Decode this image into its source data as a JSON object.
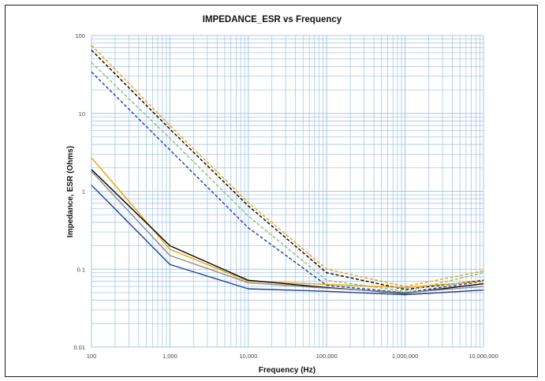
{
  "chart_data": {
    "type": "line",
    "title": "IMPEDANCE_ESR vs Frequency",
    "xlabel": "Frequency (Hz)",
    "ylabel": "Impedance, ESR (Ohms)",
    "x_scale": "log",
    "y_scale": "log",
    "xlim": [
      100,
      10000000
    ],
    "ylim": [
      0.01,
      100
    ],
    "x_ticks": [
      {
        "value": 100,
        "label": "100"
      },
      {
        "value": 1000,
        "label": "1,000"
      },
      {
        "value": 10000,
        "label": "10,000"
      },
      {
        "value": 100000,
        "label": "100,000"
      },
      {
        "value": 1000000,
        "label": "1,000,000"
      },
      {
        "value": 10000000,
        "label": "10,000,000"
      }
    ],
    "y_ticks": [
      {
        "value": 0.01,
        "label": "0.01"
      },
      {
        "value": 0.1,
        "label": "0.1"
      },
      {
        "value": 1,
        "label": "1"
      },
      {
        "value": 10,
        "label": "10"
      },
      {
        "value": 100,
        "label": "100"
      }
    ],
    "grid": true,
    "grid_color": "#a9c8e6",
    "legend": "none",
    "x": [
      100,
      1000,
      10000,
      100000,
      1000000,
      10000000
    ],
    "series": [
      {
        "color": "#f0a000",
        "dash": true,
        "values": [
          75,
          7.0,
          0.72,
          0.1,
          0.06,
          0.095
        ]
      },
      {
        "color": "#000000",
        "dash": true,
        "values": [
          65,
          6.3,
          0.65,
          0.09,
          0.055,
          0.072
        ]
      },
      {
        "color": "#8fbf6a",
        "dash": true,
        "values": [
          45,
          4.8,
          0.48,
          0.072,
          0.052,
          0.09
        ]
      },
      {
        "color": "#1f3f99",
        "dash": true,
        "values": [
          34,
          3.4,
          0.34,
          0.062,
          0.05,
          0.07
        ]
      },
      {
        "color": "#f0a000",
        "dash": false,
        "values": [
          2.7,
          0.18,
          0.07,
          0.064,
          0.058,
          0.07
        ]
      },
      {
        "color": "#000000",
        "dash": false,
        "values": [
          1.9,
          0.2,
          0.072,
          0.058,
          0.049,
          0.065
        ]
      },
      {
        "color": "#8c8c8c",
        "dash": false,
        "values": [
          1.8,
          0.15,
          0.067,
          0.057,
          0.05,
          0.06
        ]
      },
      {
        "color": "#1f3f99",
        "dash": false,
        "values": [
          1.2,
          0.115,
          0.056,
          0.052,
          0.047,
          0.054
        ]
      }
    ]
  }
}
